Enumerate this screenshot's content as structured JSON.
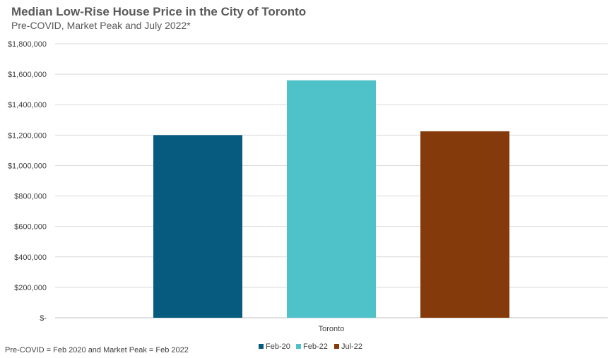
{
  "chart_data": {
    "type": "bar",
    "title": "Median Low-Rise House Price in the City of Toronto",
    "subtitle": "Pre-COVID, Market Peak and July 2022*",
    "categories": [
      "Toronto"
    ],
    "series": [
      {
        "name": "Feb-20",
        "values": [
          1200000
        ],
        "color": "#075B7E"
      },
      {
        "name": "Feb-22",
        "values": [
          1560000
        ],
        "color": "#4FC1C9"
      },
      {
        "name": "Jul-22",
        "values": [
          1225000
        ],
        "color": "#853A0C"
      }
    ],
    "yticks": [
      0,
      200000,
      400000,
      600000,
      800000,
      1000000,
      1200000,
      1400000,
      1600000,
      1800000
    ],
    "ytick_labels": [
      "$-",
      "$200,000",
      "$400,000",
      "$600,000",
      "$800,000",
      "$1,000,000",
      "$1,200,000",
      "$1,400,000",
      "$1,600,000",
      "$1,800,000"
    ],
    "ylim": [
      0,
      1800000
    ],
    "grid": true,
    "legend_position": "bottom",
    "footnote": "Pre-COVID = Feb 2020 and Market Peak = Feb 2022"
  }
}
